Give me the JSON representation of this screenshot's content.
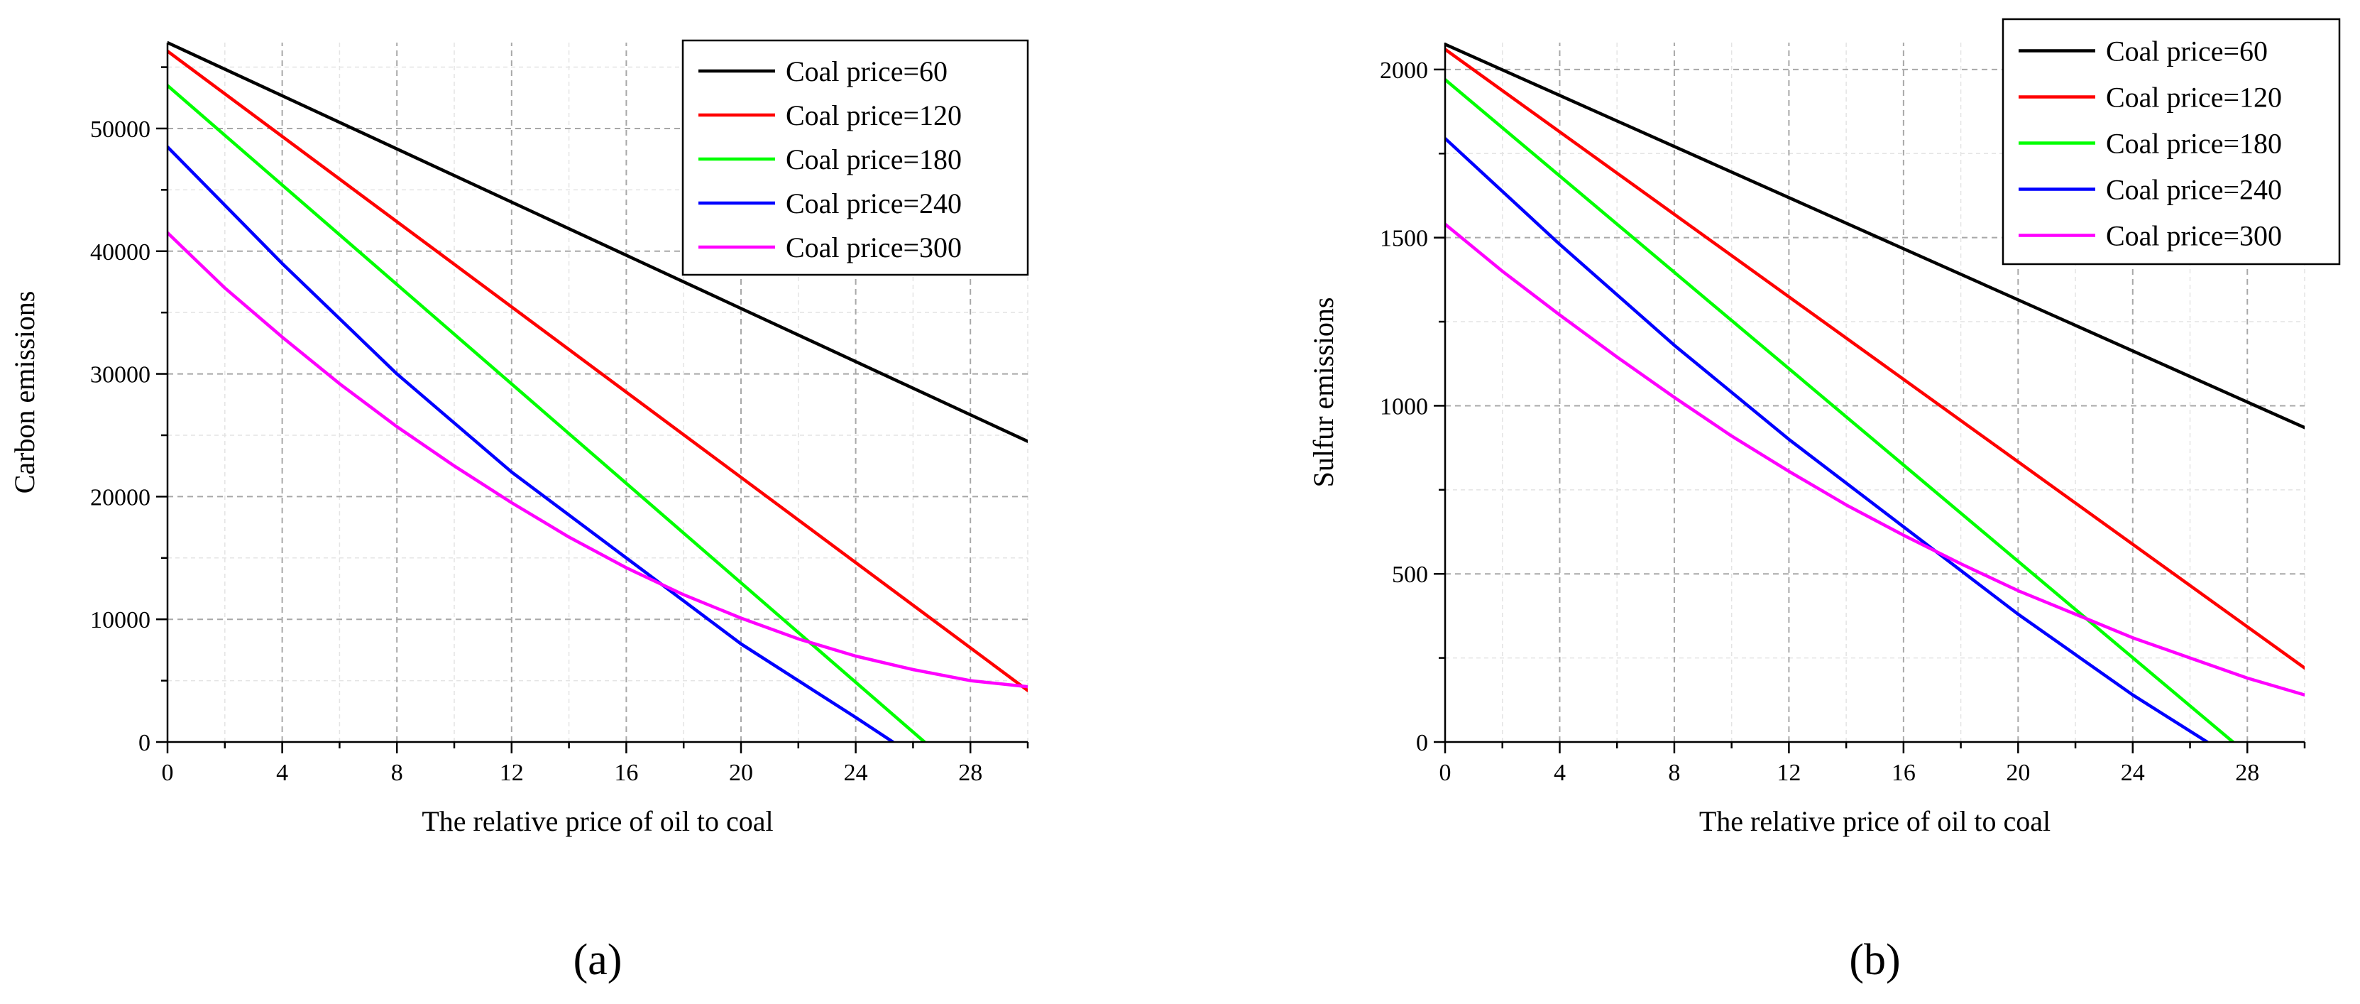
{
  "chart_data": [
    {
      "type": "line",
      "panel_label": "(a)",
      "xlabel": "The relative price of oil to coal",
      "ylabel": "Carbon emissions",
      "xlim": [
        0,
        30
      ],
      "ylim": [
        0,
        57000
      ],
      "xticks": [
        0,
        4,
        8,
        12,
        16,
        20,
        24,
        28
      ],
      "yticks": [
        0,
        10000,
        20000,
        30000,
        40000,
        50000
      ],
      "grid": true,
      "legend_position": "top-right",
      "series": [
        {
          "name": "Coal price=60",
          "color": "#000000",
          "x": [
            0,
            30
          ],
          "y": [
            57000,
            24500
          ]
        },
        {
          "name": "Coal price=120",
          "color": "#ff0000",
          "x": [
            0,
            30
          ],
          "y": [
            56300,
            4200
          ]
        },
        {
          "name": "Coal price=180",
          "color": "#00ff00",
          "x": [
            0,
            26.4
          ],
          "y": [
            53500,
            0
          ]
        },
        {
          "name": "Coal price=240",
          "color": "#0000ff",
          "x": [
            0,
            4,
            8,
            12,
            16,
            20,
            24,
            25.3
          ],
          "y": [
            48500,
            39000,
            30000,
            22000,
            15000,
            8000,
            2000,
            0
          ]
        },
        {
          "name": "Coal price=300",
          "color": "#ff00ff",
          "x": [
            0,
            2,
            4,
            6,
            8,
            10,
            12,
            14,
            16,
            18,
            20,
            22,
            24,
            26,
            28,
            30
          ],
          "y": [
            41500,
            37000,
            33000,
            29200,
            25700,
            22500,
            19500,
            16700,
            14200,
            12000,
            10100,
            8400,
            7000,
            5900,
            5000,
            4500
          ]
        }
      ]
    },
    {
      "type": "line",
      "panel_label": "(b)",
      "xlabel": "The relative price of oil to coal",
      "ylabel": "Sulfur emissions",
      "xlim": [
        0,
        30
      ],
      "ylim": [
        0,
        2080
      ],
      "xticks": [
        0,
        4,
        8,
        12,
        16,
        20,
        24,
        28
      ],
      "yticks": [
        0,
        500,
        1000,
        1500,
        2000
      ],
      "grid": true,
      "legend_position": "top-right",
      "series": [
        {
          "name": "Coal price=60",
          "color": "#000000",
          "x": [
            0,
            30
          ],
          "y": [
            2075,
            935
          ]
        },
        {
          "name": "Coal price=120",
          "color": "#ff0000",
          "x": [
            0,
            30
          ],
          "y": [
            2060,
            220
          ]
        },
        {
          "name": "Coal price=180",
          "color": "#00ff00",
          "x": [
            0,
            27.5
          ],
          "y": [
            1970,
            0
          ]
        },
        {
          "name": "Coal price=240",
          "color": "#0000ff",
          "x": [
            0,
            4,
            8,
            12,
            16,
            20,
            24,
            26.6
          ],
          "y": [
            1795,
            1480,
            1180,
            900,
            640,
            380,
            140,
            0
          ]
        },
        {
          "name": "Coal price=300",
          "color": "#ff00ff",
          "x": [
            0,
            2,
            4,
            6,
            8,
            10,
            12,
            14,
            16,
            18,
            20,
            22,
            24,
            26,
            28,
            30
          ],
          "y": [
            1540,
            1400,
            1270,
            1145,
            1025,
            910,
            805,
            705,
            615,
            530,
            450,
            380,
            310,
            250,
            190,
            140
          ]
        }
      ]
    }
  ]
}
